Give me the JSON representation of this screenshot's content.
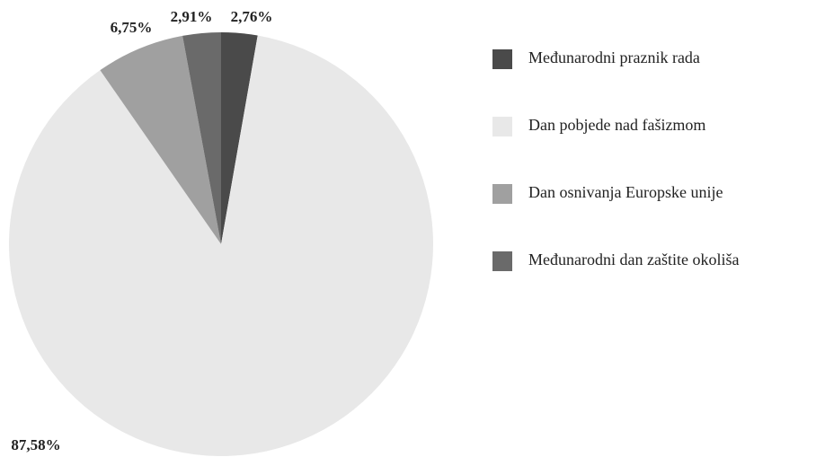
{
  "chart_data": {
    "type": "pie",
    "categories": [
      "Međunarodni praznik rada",
      "Dan pobjede nad fašizmom",
      "Dan osnivanja Europske unije",
      "Međunarodni dan zaštite okoliša"
    ],
    "values": [
      2.76,
      87.58,
      6.75,
      2.91
    ],
    "value_labels": [
      "2,76%",
      "87,58%",
      "6,75%",
      "2,91%"
    ],
    "colors": [
      "#4a4a4a",
      "#e8e8e8",
      "#a0a0a0",
      "#6a6a6a"
    ],
    "legend": "right"
  }
}
